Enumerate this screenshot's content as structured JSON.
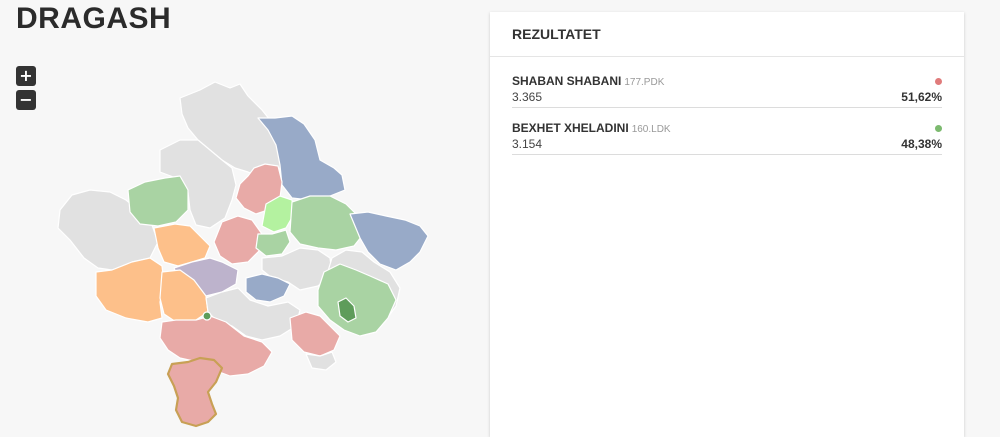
{
  "title": "DRAGASH",
  "zoom": {
    "in_label": "+",
    "out_label": "−"
  },
  "panel": {
    "title": "REZULTATET",
    "results": [
      {
        "name": "SHABAN SHABANI",
        "party": "177.PDK",
        "votes": "3.365",
        "percent": "51,62%",
        "color": "#e07b7b"
      },
      {
        "name": "BEXHET XHELADINI",
        "party": "160.LDK",
        "votes": "3.154",
        "percent": "48,38%",
        "color": "#7cba6f"
      }
    ]
  },
  "map_colors": {
    "grey": "#e1e1e1",
    "red": "#e8aaa7",
    "green": "#a9d3a3",
    "blue": "#98aac8",
    "orange": "#fdc08a",
    "purple": "#bdb3cc",
    "lime": "#b4f2a0",
    "dark_green": "#5e9c5a",
    "highlight_border": "#c8a055"
  }
}
